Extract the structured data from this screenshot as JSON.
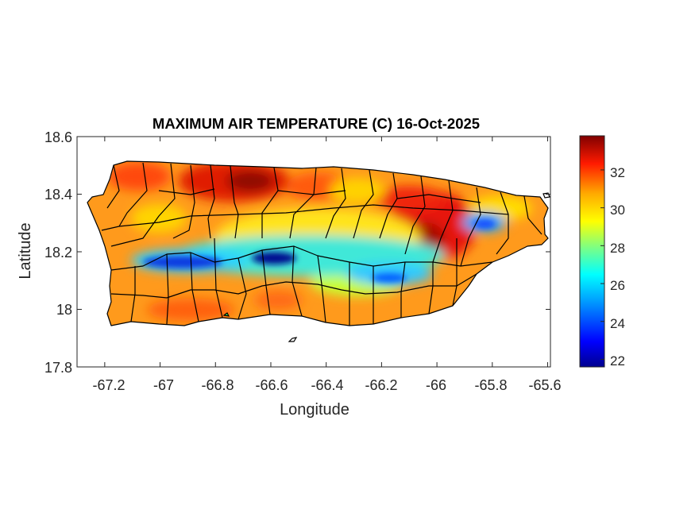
{
  "map": {
    "title": "MAXIMUM AIR TEMPERATURE (C) 16-Oct-2025",
    "xlabel": "Longitude",
    "ylabel": "Latitude",
    "xlim": [
      -67.3,
      -65.59
    ],
    "ylim": [
      17.8,
      18.6
    ],
    "xticks": [
      "-67.2",
      "-67",
      "-66.8",
      "-66.6",
      "-66.4",
      "-66.2",
      "-66",
      "-65.8",
      "-65.6"
    ],
    "xtick_values": [
      -67.2,
      -67.0,
      -66.8,
      -66.6,
      -66.4,
      -66.2,
      -66.0,
      -65.8,
      -65.6
    ],
    "yticks": [
      "18.6",
      "18.4",
      "18.2",
      "18"
    ],
    "ytick_values": [
      18.6,
      18.4,
      18.2,
      18.0
    ],
    "yticks_bottom": "17.8",
    "colorbar": {
      "range": [
        21.6,
        33.8
      ],
      "ticks": [
        "32",
        "30",
        "28",
        "26",
        "24",
        "22"
      ],
      "tick_values": [
        32,
        30,
        28,
        26,
        24,
        22
      ],
      "colormap": "jet",
      "colors": [
        "#00008f",
        "#0000ff",
        "#0080ff",
        "#00ffff",
        "#80ff80",
        "#ffff00",
        "#ff8000",
        "#ff0000",
        "#800000"
      ]
    },
    "colors": {
      "island_base": "#ff9a1c",
      "municipality_lines": "#000000",
      "axes": "#262626"
    }
  }
}
